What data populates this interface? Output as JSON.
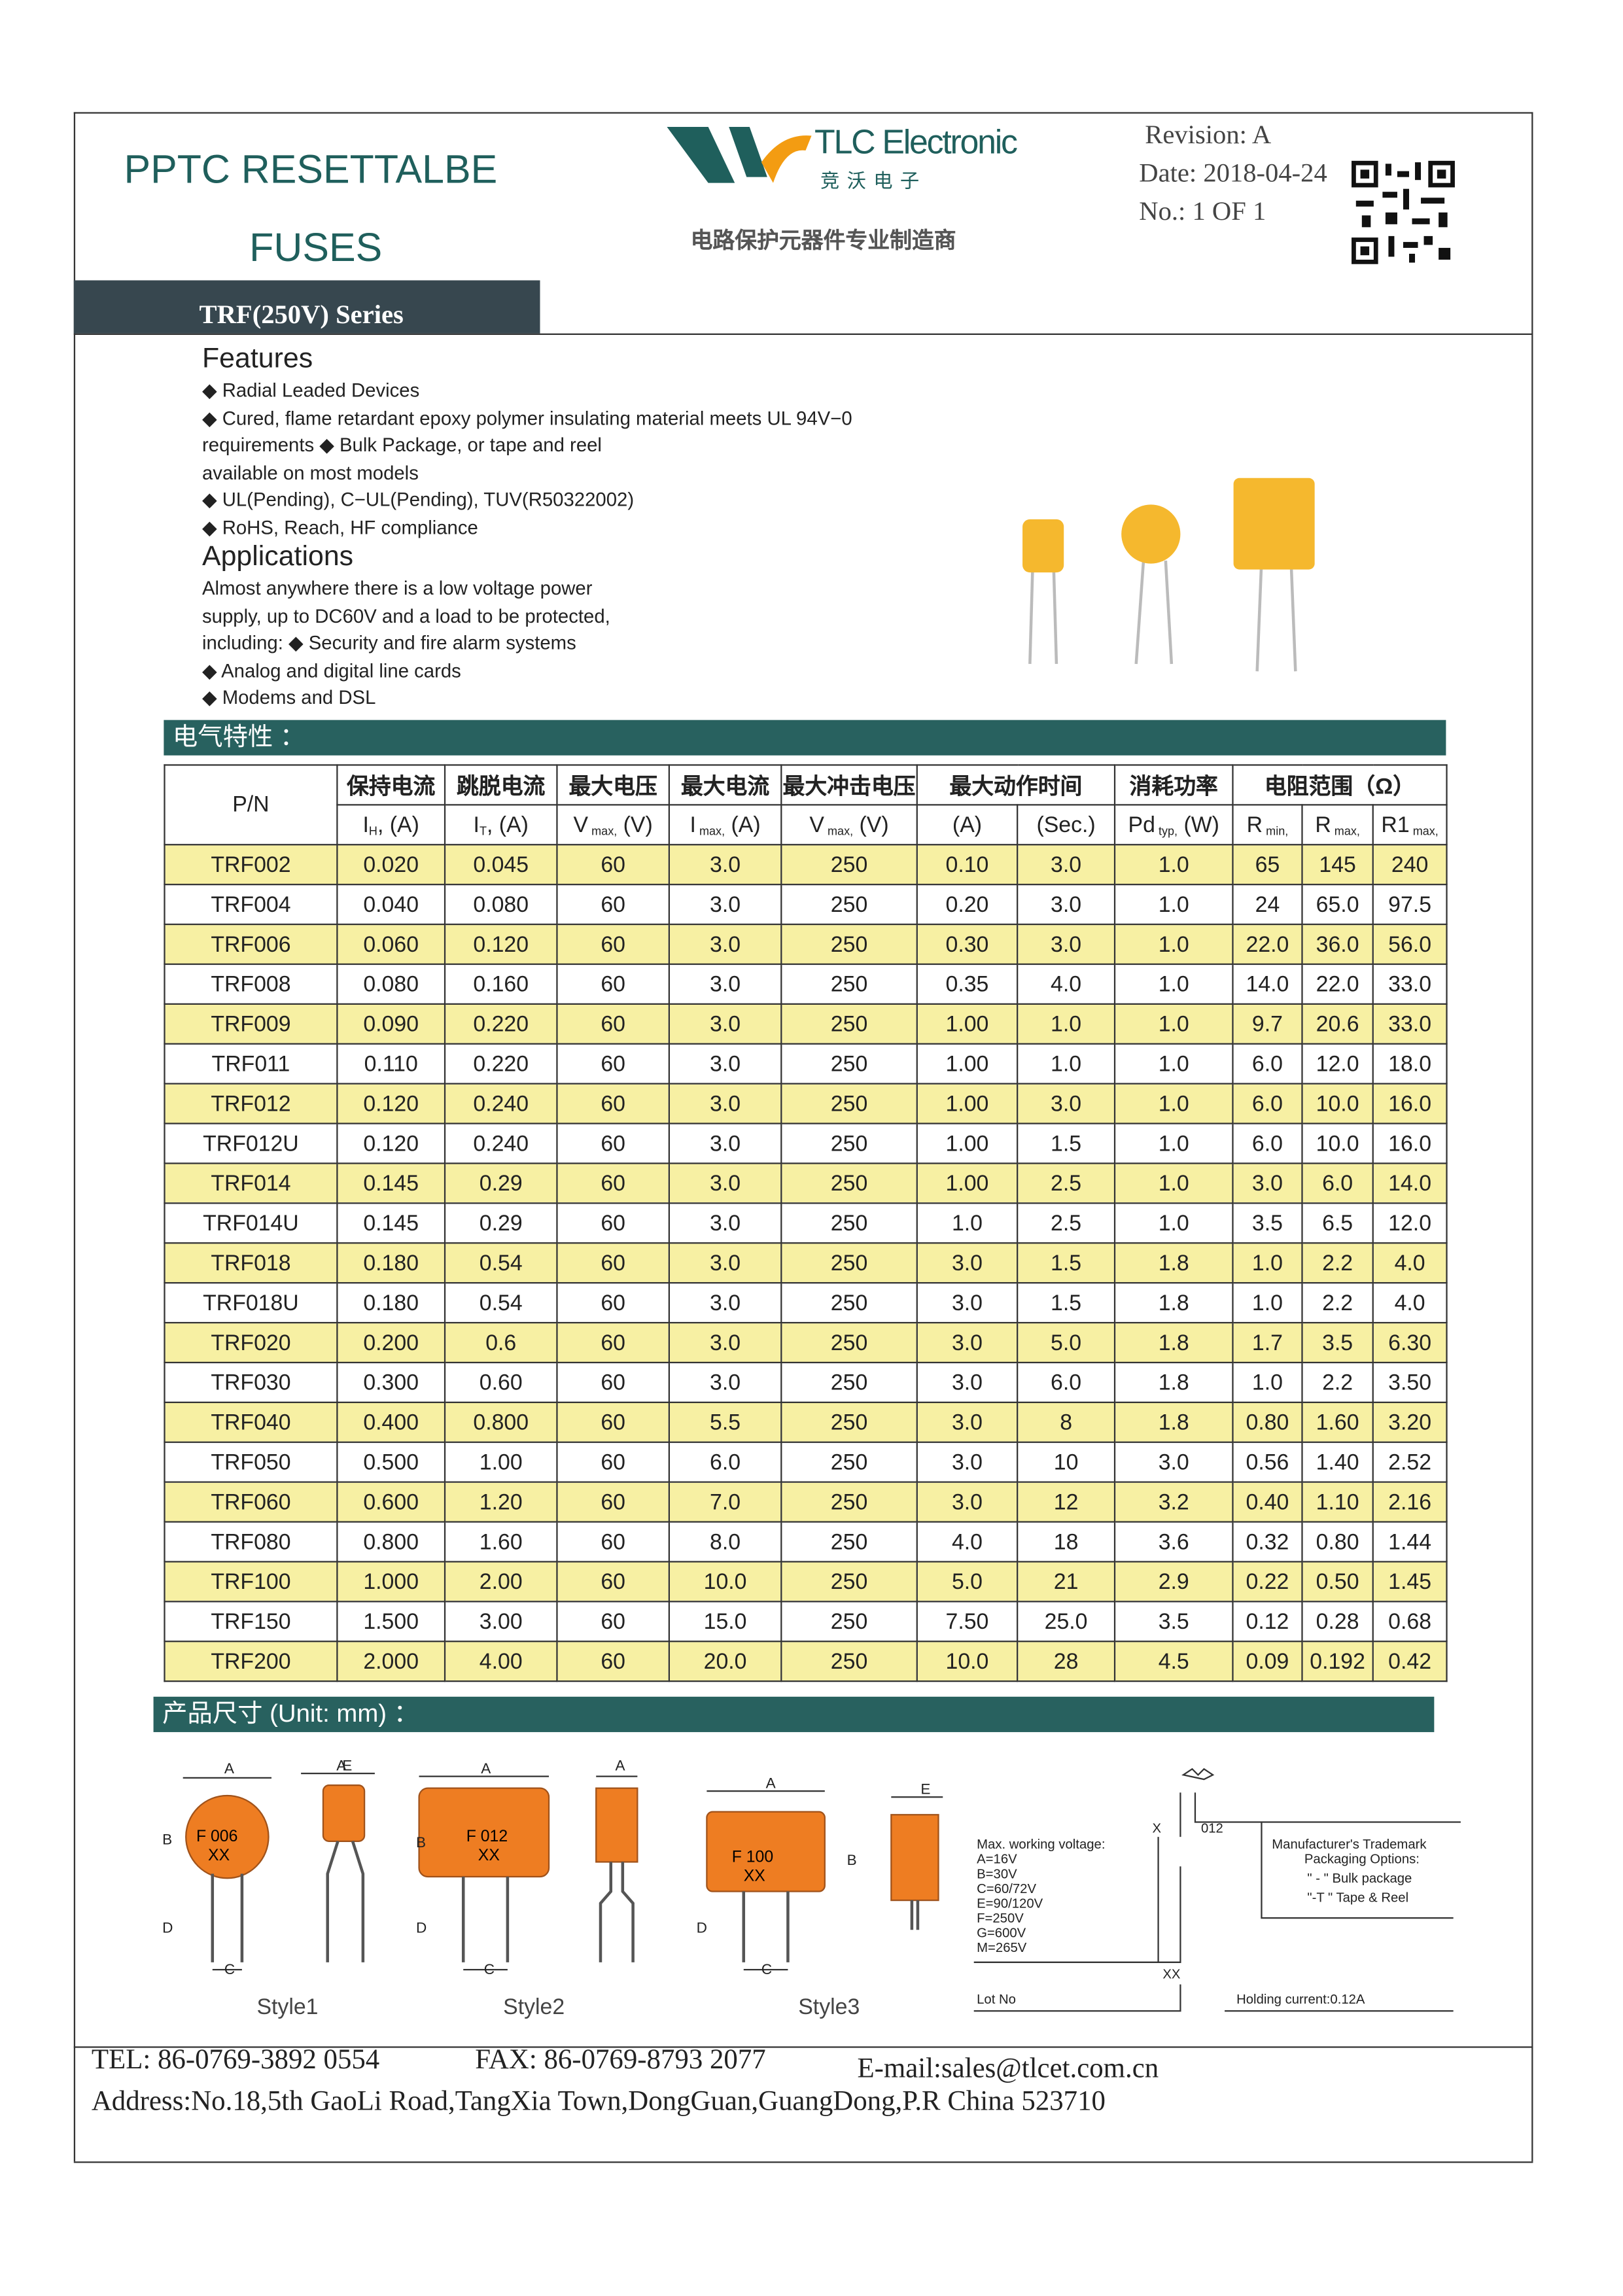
{
  "header": {
    "title_line1": "PPTC RESETTALBE",
    "title_line2": "FUSES",
    "logo_text": "TLC Electronic",
    "logo_cn": "竞沃电子",
    "slogan": "电路保护元器件专业制造商",
    "revision": "Revision: A",
    "date": "Date: 2018-04-24",
    "page_no": "No.: 1 OF 1",
    "series": "TRF(250V) Series"
  },
  "features": {
    "heading": "Features",
    "lines": [
      "◆ Radial Leaded Devices",
      "◆ Cured, flame retardant epoxy polymer insulating material meets UL 94V−0",
      "requirements ◆ Bulk Package, or tape and reel",
      "available on most models",
      "◆ UL(Pending), C−UL(Pending), TUV(R50322002)",
      "◆ RoHS, Reach, HF compliance"
    ]
  },
  "applications": {
    "heading": "Applications",
    "lines": [
      "Almost anywhere there is a low voltage power",
      "supply, up to DC60V and a load to be protected,",
      "including: ◆ Security and fire alarm systems",
      "◆ Analog and digital line cards",
      "◆ Modems and DSL"
    ]
  },
  "electrical": {
    "heading": "电气特性 ：",
    "table": {
      "pn": "P/N",
      "groups": [
        {
          "label": "保持电流",
          "span": 1
        },
        {
          "label": "跳脱电流",
          "span": 1
        },
        {
          "label": "最大电压",
          "span": 1
        },
        {
          "label": "最大电流",
          "span": 1
        },
        {
          "label": "最大冲击电压",
          "span": 1
        },
        {
          "label": "最大动作时间",
          "span": 2
        },
        {
          "label": "消耗功率",
          "span": 1
        },
        {
          "label": "电阻范围（Ω）",
          "span": 3
        }
      ],
      "units": [
        {
          "base": "I",
          "sub": "H",
          "unit": ", (A)"
        },
        {
          "base": "I",
          "sub": "T",
          "unit": ", (A)"
        },
        {
          "base": "V",
          "sub": " max,",
          "unit": " (V)"
        },
        {
          "base": "I",
          "sub": " max,",
          "unit": " (A)"
        },
        {
          "base": "V",
          "sub": " max,",
          "unit": " (V)"
        },
        {
          "base": "(A)"
        },
        {
          "base": "(Sec.)"
        },
        {
          "base": "Pd",
          "sub": " typ,",
          "unit": " (W)"
        },
        {
          "base": "R",
          "sub": " min,"
        },
        {
          "base": "R",
          "sub": " max,"
        },
        {
          "base": "R1",
          "sub": " max,"
        }
      ],
      "rows": [
        [
          "TRF002",
          "0.020",
          "0.045",
          "60",
          "3.0",
          "250",
          "0.10",
          "3.0",
          "1.0",
          "65",
          "145",
          "240"
        ],
        [
          "TRF004",
          "0.040",
          "0.080",
          "60",
          "3.0",
          "250",
          "0.20",
          "3.0",
          "1.0",
          "24",
          "65.0",
          "97.5"
        ],
        [
          "TRF006",
          "0.060",
          "0.120",
          "60",
          "3.0",
          "250",
          "0.30",
          "3.0",
          "1.0",
          "22.0",
          "36.0",
          "56.0"
        ],
        [
          "TRF008",
          "0.080",
          "0.160",
          "60",
          "3.0",
          "250",
          "0.35",
          "4.0",
          "1.0",
          "14.0",
          "22.0",
          "33.0"
        ],
        [
          "TRF009",
          "0.090",
          "0.220",
          "60",
          "3.0",
          "250",
          "1.00",
          "1.0",
          "1.0",
          "9.7",
          "20.6",
          "33.0"
        ],
        [
          "TRF011",
          "0.110",
          "0.220",
          "60",
          "3.0",
          "250",
          "1.00",
          "1.0",
          "1.0",
          "6.0",
          "12.0",
          "18.0"
        ],
        [
          "TRF012",
          "0.120",
          "0.240",
          "60",
          "3.0",
          "250",
          "1.00",
          "3.0",
          "1.0",
          "6.0",
          "10.0",
          "16.0"
        ],
        [
          "TRF012U",
          "0.120",
          "0.240",
          "60",
          "3.0",
          "250",
          "1.00",
          "1.5",
          "1.0",
          "6.0",
          "10.0",
          "16.0"
        ],
        [
          "TRF014",
          "0.145",
          "0.29",
          "60",
          "3.0",
          "250",
          "1.00",
          "2.5",
          "1.0",
          "3.0",
          "6.0",
          "14.0"
        ],
        [
          "TRF014U",
          "0.145",
          "0.29",
          "60",
          "3.0",
          "250",
          "1.0",
          "2.5",
          "1.0",
          "3.5",
          "6.5",
          "12.0"
        ],
        [
          "TRF018",
          "0.180",
          "0.54",
          "60",
          "3.0",
          "250",
          "3.0",
          "1.5",
          "1.8",
          "1.0",
          "2.2",
          "4.0"
        ],
        [
          "TRF018U",
          "0.180",
          "0.54",
          "60",
          "3.0",
          "250",
          "3.0",
          "1.5",
          "1.8",
          "1.0",
          "2.2",
          "4.0"
        ],
        [
          "TRF020",
          "0.200",
          "0.6",
          "60",
          "3.0",
          "250",
          "3.0",
          "5.0",
          "1.8",
          "1.7",
          "3.5",
          "6.30"
        ],
        [
          "TRF030",
          "0.300",
          "0.60",
          "60",
          "3.0",
          "250",
          "3.0",
          "6.0",
          "1.8",
          "1.0",
          "2.2",
          "3.50"
        ],
        [
          "TRF040",
          "0.400",
          "0.800",
          "60",
          "5.5",
          "250",
          "3.0",
          "8",
          "1.8",
          "0.80",
          "1.60",
          "3.20"
        ],
        [
          "TRF050",
          "0.500",
          "1.00",
          "60",
          "6.0",
          "250",
          "3.0",
          "10",
          "3.0",
          "0.56",
          "1.40",
          "2.52"
        ],
        [
          "TRF060",
          "0.600",
          "1.20",
          "60",
          "7.0",
          "250",
          "3.0",
          "12",
          "3.2",
          "0.40",
          "1.10",
          "2.16"
        ],
        [
          "TRF080",
          "0.800",
          "1.60",
          "60",
          "8.0",
          "250",
          "4.0",
          "18",
          "3.6",
          "0.32",
          "0.80",
          "1.44"
        ],
        [
          "TRF100",
          "1.000",
          "2.00",
          "60",
          "10.0",
          "250",
          "5.0",
          "21",
          "2.9",
          "0.22",
          "0.50",
          "1.45"
        ],
        [
          "TRF150",
          "1.500",
          "3.00",
          "60",
          "15.0",
          "250",
          "7.50",
          "25.0",
          "3.5",
          "0.12",
          "0.28",
          "0.68"
        ],
        [
          "TRF200",
          "2.000",
          "4.00",
          "60",
          "20.0",
          "250",
          "10.0",
          "28",
          "4.5",
          "0.09",
          "0.192",
          "0.42"
        ]
      ]
    }
  },
  "dimensions": {
    "heading": "产品尺寸 (Unit: mm) ：",
    "styles": [
      {
        "label": "Style1",
        "mark1": "F 006",
        "mark2": "XX"
      },
      {
        "label": "Style2",
        "mark1": "F 012",
        "mark2": "XX"
      },
      {
        "label": "Style3",
        "mark1": "F 100",
        "mark2": "XX"
      }
    ],
    "dim_letters": [
      "A",
      "B",
      "C",
      "D",
      "E"
    ],
    "marking": {
      "voltage_title": "Max. working voltage:",
      "voltages": [
        "A=16V",
        "B=30V",
        "C=60/72V",
        "E=90/120V",
        "F=250V",
        "G=600V",
        "M=265V"
      ],
      "x": "X",
      "code": "012",
      "trademark": "Manufacturer's Trademark",
      "packaging": "Packaging Options:",
      "bulk": "\" - \" Bulk package",
      "tape": "\"-T \" Tape & Reel",
      "lot_code": "XX",
      "lot": "Lot No",
      "holding": "Holding current:0.12A"
    }
  },
  "footer": {
    "tel": "TEL: 86-0769-3892 0554",
    "fax": "FAX: 86-0769-8793 2077",
    "email": "E-mail:sales@tlcet.com.cn",
    "address": "Address:No.18,5th GaoLi Road,TangXia Town,DongGuan,GuangDong,P.R China 523710"
  }
}
